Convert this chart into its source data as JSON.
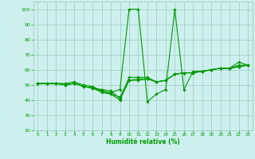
{
  "xlabel": "Humidité relative (%)",
  "xlim": [
    -0.5,
    23.5
  ],
  "ylim": [
    20,
    105
  ],
  "yticks": [
    20,
    30,
    40,
    50,
    60,
    70,
    80,
    90,
    100
  ],
  "xticks": [
    0,
    1,
    2,
    3,
    4,
    5,
    6,
    7,
    8,
    9,
    10,
    11,
    12,
    13,
    14,
    15,
    16,
    17,
    18,
    19,
    20,
    21,
    22,
    23
  ],
  "background_color": "#cdf0ee",
  "grid_color": "#99ccbb",
  "line_color": "#009900",
  "series": [
    [
      51,
      51,
      51,
      51,
      52,
      50,
      49,
      46,
      45,
      47,
      100,
      100,
      39,
      44,
      47,
      100,
      47,
      59,
      59,
      60,
      61,
      61,
      65,
      63
    ],
    [
      51,
      51,
      51,
      50,
      51,
      49,
      48,
      47,
      46,
      41,
      55,
      55,
      55,
      52,
      53,
      57,
      58,
      58,
      59,
      60,
      61,
      61,
      62,
      63
    ],
    [
      51,
      51,
      51,
      50,
      51,
      49,
      48,
      46,
      44,
      42,
      53,
      54,
      54,
      52,
      53,
      57,
      58,
      58,
      59,
      60,
      61,
      61,
      63,
      63
    ],
    [
      51,
      51,
      51,
      50,
      51,
      49,
      48,
      45,
      44,
      40,
      53,
      53,
      54,
      52,
      53,
      57,
      58,
      58,
      59,
      60,
      61,
      61,
      62,
      63
    ]
  ]
}
